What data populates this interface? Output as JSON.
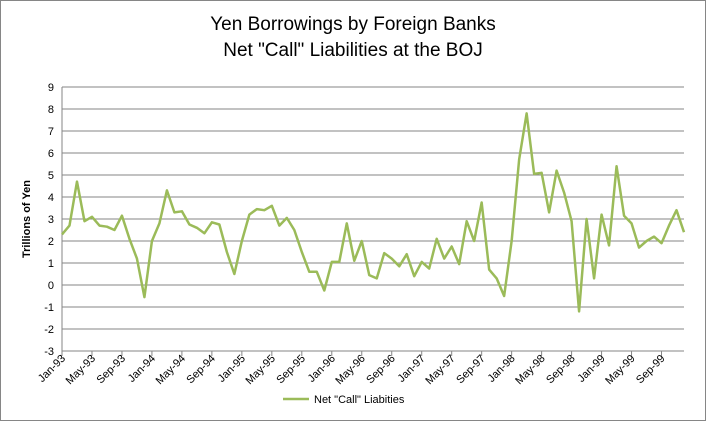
{
  "chart_data": {
    "type": "line",
    "title": "Yen Borrowings by Foreign Banks",
    "subtitle": "Net \"Call\" Liabilities at the BOJ",
    "y_label": "Trillions of Yen",
    "categories": [
      "Jan-93",
      null,
      null,
      null,
      "May-93",
      null,
      null,
      null,
      "Sep-93",
      null,
      null,
      null,
      "Jan-94",
      null,
      null,
      null,
      "May-94",
      null,
      null,
      null,
      "Sep-94",
      null,
      null,
      null,
      "Jan-95",
      null,
      null,
      null,
      "May-95",
      null,
      null,
      null,
      "Sep-95",
      null,
      null,
      null,
      "Jan-96",
      null,
      null,
      null,
      "May-96",
      null,
      null,
      null,
      "Sep-96",
      null,
      null,
      null,
      "Jan-97",
      null,
      null,
      null,
      "May-97",
      null,
      null,
      null,
      "Sep-97",
      null,
      null,
      null,
      "Jan-98",
      null,
      null,
      null,
      "May-98",
      null,
      null,
      null,
      "Sep-98",
      null,
      null,
      null,
      "Jan-99",
      null,
      null,
      null,
      "May-99",
      null,
      null,
      null,
      "Sep-99",
      null,
      null,
      null
    ],
    "series": [
      {
        "name": "Net \"Call\" Liabities",
        "color": "#9bbb59",
        "values": [
          2.3,
          2.7,
          4.7,
          2.9,
          3.1,
          2.7,
          2.65,
          2.5,
          3.15,
          2.1,
          1.2,
          -0.55,
          2.0,
          2.8,
          4.3,
          3.3,
          3.35,
          2.75,
          2.6,
          2.35,
          2.85,
          2.75,
          1.5,
          0.5,
          2.0,
          3.2,
          3.45,
          3.4,
          3.6,
          2.7,
          3.05,
          2.5,
          1.5,
          0.6,
          0.6,
          -0.25,
          1.05,
          1.05,
          2.8,
          1.1,
          2.0,
          0.45,
          0.3,
          1.45,
          1.2,
          0.85,
          1.4,
          0.4,
          1.05,
          0.75,
          2.1,
          1.2,
          1.75,
          0.95,
          2.9,
          2.0,
          3.75,
          0.7,
          0.3,
          -0.5,
          2.0,
          5.7,
          7.8,
          5.05,
          5.1,
          3.3,
          5.2,
          4.2,
          2.9,
          -1.2,
          3.0,
          0.3,
          3.2,
          1.8,
          5.4,
          3.15,
          2.8,
          1.7,
          2.0,
          2.2,
          1.9,
          2.7,
          3.4,
          2.4
        ]
      }
    ],
    "ylim": [
      -3,
      9
    ],
    "yticks": [
      -3,
      -2,
      -1,
      0,
      1,
      2,
      3,
      4,
      5,
      6,
      7,
      8,
      9
    ],
    "grid": true,
    "legend": "bottom"
  }
}
